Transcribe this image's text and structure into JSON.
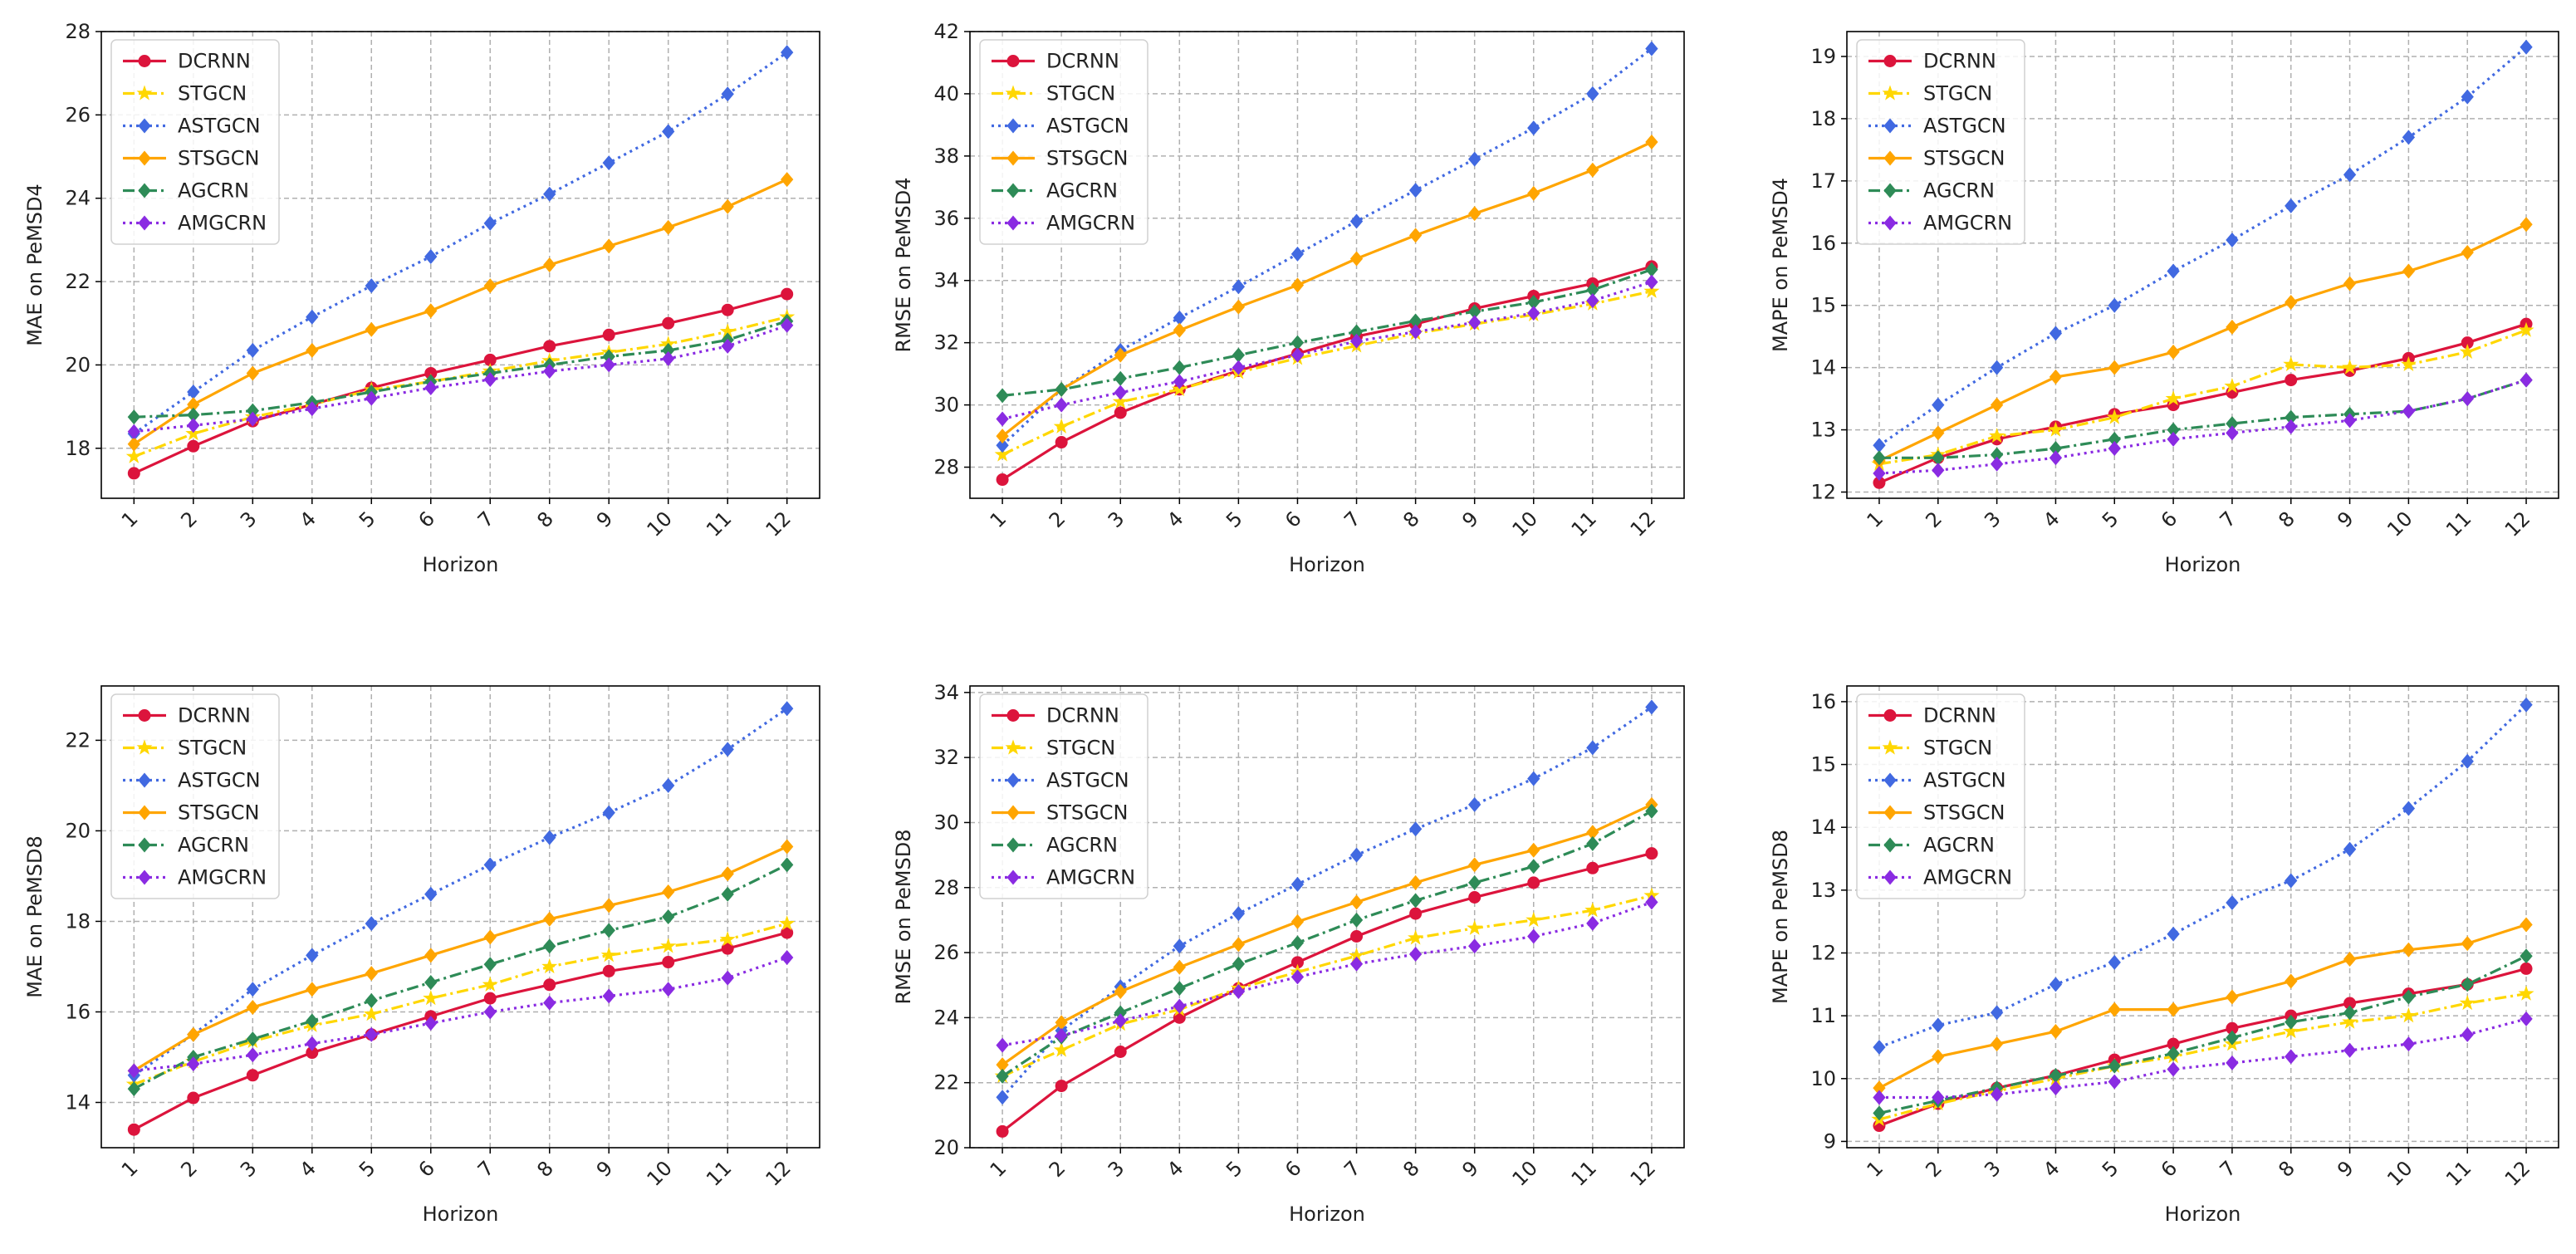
{
  "chart_data": [
    {
      "type": "line",
      "title": "",
      "xlabel": "Horizon",
      "ylabel": "MAE on PeMSD4",
      "x": [
        1,
        2,
        3,
        4,
        5,
        6,
        7,
        8,
        9,
        10,
        11,
        12
      ],
      "x_tick_labels": [
        "1",
        "2",
        "3",
        "4",
        "5",
        "6",
        "7",
        "8",
        "9",
        "10",
        "11",
        "12"
      ],
      "ylim": [
        16.8,
        28
      ],
      "y_ticks": [
        18,
        20,
        22,
        24,
        26,
        28
      ],
      "grid": true,
      "legend": "upper-left",
      "series": [
        {
          "name": "DCRNN",
          "values": [
            17.4,
            18.05,
            18.65,
            19.05,
            19.45,
            19.8,
            20.12,
            20.45,
            20.72,
            21.0,
            21.32,
            21.7
          ]
        },
        {
          "name": "STGCN",
          "values": [
            17.8,
            18.35,
            18.75,
            19.05,
            19.4,
            19.6,
            19.85,
            20.1,
            20.3,
            20.5,
            20.8,
            21.15
          ]
        },
        {
          "name": "ASTGCN",
          "values": [
            18.35,
            19.35,
            20.35,
            21.15,
            21.9,
            22.6,
            23.4,
            24.1,
            24.85,
            25.6,
            26.5,
            27.5
          ]
        },
        {
          "name": "STSGCN",
          "values": [
            18.1,
            19.05,
            19.8,
            20.35,
            20.85,
            21.3,
            21.9,
            22.4,
            22.85,
            23.3,
            23.8,
            24.45
          ]
        },
        {
          "name": "AGCRN",
          "values": [
            18.75,
            18.8,
            18.9,
            19.1,
            19.35,
            19.6,
            19.8,
            20.0,
            20.2,
            20.35,
            20.6,
            21.05
          ]
        },
        {
          "name": "AMGCRN",
          "values": [
            18.4,
            18.55,
            18.7,
            18.95,
            19.2,
            19.45,
            19.65,
            19.85,
            20.0,
            20.15,
            20.45,
            20.95
          ]
        }
      ]
    },
    {
      "type": "line",
      "title": "",
      "xlabel": "Horizon",
      "ylabel": "RMSE on PeMSD4",
      "x": [
        1,
        2,
        3,
        4,
        5,
        6,
        7,
        8,
        9,
        10,
        11,
        12
      ],
      "x_tick_labels": [
        "1",
        "2",
        "3",
        "4",
        "5",
        "6",
        "7",
        "8",
        "9",
        "10",
        "11",
        "12"
      ],
      "ylim": [
        27,
        42
      ],
      "y_ticks": [
        28,
        30,
        32,
        34,
        36,
        38,
        40,
        42
      ],
      "grid": true,
      "legend": "upper-left",
      "series": [
        {
          "name": "DCRNN",
          "values": [
            27.6,
            28.8,
            29.75,
            30.5,
            31.1,
            31.65,
            32.2,
            32.6,
            33.1,
            33.5,
            33.9,
            34.45
          ]
        },
        {
          "name": "STGCN",
          "values": [
            28.4,
            29.3,
            30.1,
            30.5,
            31.05,
            31.5,
            31.9,
            32.3,
            32.6,
            32.9,
            33.25,
            33.65
          ]
        },
        {
          "name": "ASTGCN",
          "values": [
            28.7,
            30.5,
            31.75,
            32.8,
            33.8,
            34.85,
            35.9,
            36.9,
            37.9,
            38.9,
            40.0,
            41.45
          ]
        },
        {
          "name": "STSGCN",
          "values": [
            29.0,
            30.5,
            31.6,
            32.4,
            33.15,
            33.85,
            34.7,
            35.45,
            36.15,
            36.8,
            37.55,
            38.45
          ]
        },
        {
          "name": "AGCRN",
          "values": [
            30.3,
            30.5,
            30.85,
            31.2,
            31.6,
            32.0,
            32.35,
            32.7,
            33.0,
            33.3,
            33.7,
            34.35
          ]
        },
        {
          "name": "AMGCRN",
          "values": [
            29.55,
            30.0,
            30.4,
            30.75,
            31.2,
            31.6,
            32.05,
            32.35,
            32.65,
            32.95,
            33.35,
            33.95
          ]
        }
      ]
    },
    {
      "type": "line",
      "title": "",
      "xlabel": "Horizon",
      "ylabel": "MAPE on PeMSD4",
      "x": [
        1,
        2,
        3,
        4,
        5,
        6,
        7,
        8,
        9,
        10,
        11,
        12
      ],
      "x_tick_labels": [
        "1",
        "2",
        "3",
        "4",
        "5",
        "6",
        "7",
        "8",
        "9",
        "10",
        "11",
        "12"
      ],
      "ylim": [
        11.9,
        19.4
      ],
      "y_ticks": [
        12,
        13,
        14,
        15,
        16,
        17,
        18,
        19
      ],
      "grid": true,
      "legend": "upper-left",
      "series": [
        {
          "name": "DCRNN",
          "values": [
            12.15,
            12.55,
            12.85,
            13.05,
            13.25,
            13.4,
            13.6,
            13.8,
            13.95,
            14.15,
            14.4,
            14.7
          ]
        },
        {
          "name": "STGCN",
          "values": [
            12.45,
            12.6,
            12.9,
            13.0,
            13.2,
            13.5,
            13.7,
            14.05,
            14.0,
            14.05,
            14.25,
            14.6
          ]
        },
        {
          "name": "ASTGCN",
          "values": [
            12.75,
            13.4,
            14.0,
            14.55,
            15.0,
            15.55,
            16.05,
            16.6,
            17.1,
            17.7,
            18.35,
            19.15
          ]
        },
        {
          "name": "STSGCN",
          "values": [
            12.5,
            12.95,
            13.4,
            13.85,
            14.0,
            14.25,
            14.65,
            15.05,
            15.35,
            15.55,
            15.85,
            16.3
          ]
        },
        {
          "name": "AGCRN",
          "values": [
            12.55,
            12.55,
            12.6,
            12.7,
            12.85,
            13.0,
            13.1,
            13.2,
            13.25,
            13.3,
            13.5,
            13.8
          ]
        },
        {
          "name": "AMGCRN",
          "values": [
            12.3,
            12.35,
            12.45,
            12.55,
            12.7,
            12.85,
            12.95,
            13.05,
            13.15,
            13.3,
            13.5,
            13.8
          ]
        }
      ]
    },
    {
      "type": "line",
      "title": "",
      "xlabel": "Horizon",
      "ylabel": "MAE on PeMSD8",
      "x": [
        1,
        2,
        3,
        4,
        5,
        6,
        7,
        8,
        9,
        10,
        11,
        12
      ],
      "x_tick_labels": [
        "1",
        "2",
        "3",
        "4",
        "5",
        "6",
        "7",
        "8",
        "9",
        "10",
        "11",
        "12"
      ],
      "ylim": [
        13,
        23.2
      ],
      "y_ticks": [
        14,
        16,
        18,
        20,
        22
      ],
      "grid": true,
      "legend": "upper-left",
      "series": [
        {
          "name": "DCRNN",
          "values": [
            13.4,
            14.1,
            14.6,
            15.1,
            15.5,
            15.9,
            16.3,
            16.6,
            16.9,
            17.1,
            17.4,
            17.75
          ]
        },
        {
          "name": "STGCN",
          "values": [
            14.4,
            14.9,
            15.35,
            15.7,
            15.95,
            16.3,
            16.6,
            17.0,
            17.25,
            17.45,
            17.6,
            17.95
          ]
        },
        {
          "name": "ASTGCN",
          "values": [
            14.6,
            15.5,
            16.5,
            17.25,
            17.95,
            18.6,
            19.25,
            19.85,
            20.4,
            21.0,
            21.8,
            22.7
          ]
        },
        {
          "name": "STSGCN",
          "values": [
            14.7,
            15.5,
            16.1,
            16.5,
            16.85,
            17.25,
            17.65,
            18.05,
            18.35,
            18.65,
            19.05,
            19.65
          ]
        },
        {
          "name": "AGCRN",
          "values": [
            14.3,
            15.0,
            15.4,
            15.8,
            16.25,
            16.65,
            17.05,
            17.45,
            17.8,
            18.1,
            18.6,
            19.25
          ]
        },
        {
          "name": "AMGCRN",
          "values": [
            14.7,
            14.85,
            15.05,
            15.3,
            15.5,
            15.75,
            16.0,
            16.2,
            16.35,
            16.5,
            16.75,
            17.2
          ]
        }
      ]
    },
    {
      "type": "line",
      "title": "",
      "xlabel": "Horizon",
      "ylabel": "RMSE on PeMSD8",
      "x": [
        1,
        2,
        3,
        4,
        5,
        6,
        7,
        8,
        9,
        10,
        11,
        12
      ],
      "x_tick_labels": [
        "1",
        "2",
        "3",
        "4",
        "5",
        "6",
        "7",
        "8",
        "9",
        "10",
        "11",
        "12"
      ],
      "ylim": [
        20,
        34.2
      ],
      "y_ticks": [
        20,
        22,
        24,
        26,
        28,
        30,
        32,
        34
      ],
      "grid": true,
      "legend": "upper-left",
      "series": [
        {
          "name": "DCRNN",
          "values": [
            20.5,
            21.9,
            22.95,
            24.0,
            24.9,
            25.7,
            26.5,
            27.2,
            27.7,
            28.15,
            28.6,
            29.05
          ]
        },
        {
          "name": "STGCN",
          "values": [
            22.2,
            23.0,
            23.8,
            24.25,
            24.9,
            25.4,
            25.9,
            26.45,
            26.75,
            27.0,
            27.3,
            27.75
          ]
        },
        {
          "name": "ASTGCN",
          "values": [
            21.55,
            23.6,
            24.95,
            26.2,
            27.2,
            28.1,
            29.0,
            29.8,
            30.55,
            31.35,
            32.3,
            33.55
          ]
        },
        {
          "name": "STSGCN",
          "values": [
            22.55,
            23.85,
            24.8,
            25.55,
            26.25,
            26.95,
            27.55,
            28.15,
            28.7,
            29.15,
            29.7,
            30.55
          ]
        },
        {
          "name": "AGCRN",
          "values": [
            22.2,
            23.4,
            24.15,
            24.9,
            25.65,
            26.3,
            27.0,
            27.6,
            28.15,
            28.65,
            29.35,
            30.35
          ]
        },
        {
          "name": "AMGCRN",
          "values": [
            23.15,
            23.45,
            23.9,
            24.35,
            24.8,
            25.25,
            25.65,
            25.95,
            26.2,
            26.5,
            26.9,
            27.55
          ]
        }
      ]
    },
    {
      "type": "line",
      "title": "",
      "xlabel": "Horizon",
      "ylabel": "MAPE on PeMSD8",
      "x": [
        1,
        2,
        3,
        4,
        5,
        6,
        7,
        8,
        9,
        10,
        11,
        12
      ],
      "x_tick_labels": [
        "1",
        "2",
        "3",
        "4",
        "5",
        "6",
        "7",
        "8",
        "9",
        "10",
        "11",
        "12"
      ],
      "ylim": [
        8.9,
        16.25
      ],
      "y_ticks": [
        9,
        10,
        11,
        12,
        13,
        14,
        15,
        16
      ],
      "grid": true,
      "legend": "upper-left",
      "series": [
        {
          "name": "DCRNN",
          "values": [
            9.25,
            9.6,
            9.85,
            10.05,
            10.3,
            10.55,
            10.8,
            11.0,
            11.2,
            11.35,
            11.5,
            11.75
          ]
        },
        {
          "name": "STGCN",
          "values": [
            9.35,
            9.6,
            9.8,
            10.0,
            10.2,
            10.35,
            10.55,
            10.75,
            10.9,
            11.0,
            11.2,
            11.35
          ]
        },
        {
          "name": "ASTGCN",
          "values": [
            10.5,
            10.85,
            11.05,
            11.5,
            11.85,
            12.3,
            12.8,
            13.15,
            13.65,
            14.3,
            15.05,
            15.95
          ]
        },
        {
          "name": "STSGCN",
          "values": [
            9.85,
            10.35,
            10.55,
            10.75,
            11.1,
            11.1,
            11.3,
            11.55,
            11.9,
            12.05,
            12.15,
            12.45
          ]
        },
        {
          "name": "AGCRN",
          "values": [
            9.45,
            9.65,
            9.85,
            10.05,
            10.2,
            10.4,
            10.65,
            10.9,
            11.05,
            11.3,
            11.5,
            11.95
          ]
        },
        {
          "name": "AMGCRN",
          "values": [
            9.7,
            9.7,
            9.75,
            9.85,
            9.95,
            10.15,
            10.25,
            10.35,
            10.45,
            10.55,
            10.7,
            10.95
          ]
        }
      ]
    }
  ],
  "styles": [
    {
      "name": "DCRNN",
      "color": "#DC143C",
      "dash": "solid",
      "marker": "circle"
    },
    {
      "name": "STGCN",
      "color": "#FFD700",
      "dash": "dashdot",
      "marker": "star"
    },
    {
      "name": "ASTGCN",
      "color": "#4169E1",
      "dash": "dotted",
      "marker": "diamond"
    },
    {
      "name": "STSGCN",
      "color": "#FFA500",
      "dash": "solid",
      "marker": "diamond"
    },
    {
      "name": "AGCRN",
      "color": "#2E8B57",
      "dash": "dashdot",
      "marker": "diamond"
    },
    {
      "name": "AMGCRN",
      "color": "#8A2BE2",
      "dash": "dotted",
      "marker": "diamond"
    }
  ]
}
